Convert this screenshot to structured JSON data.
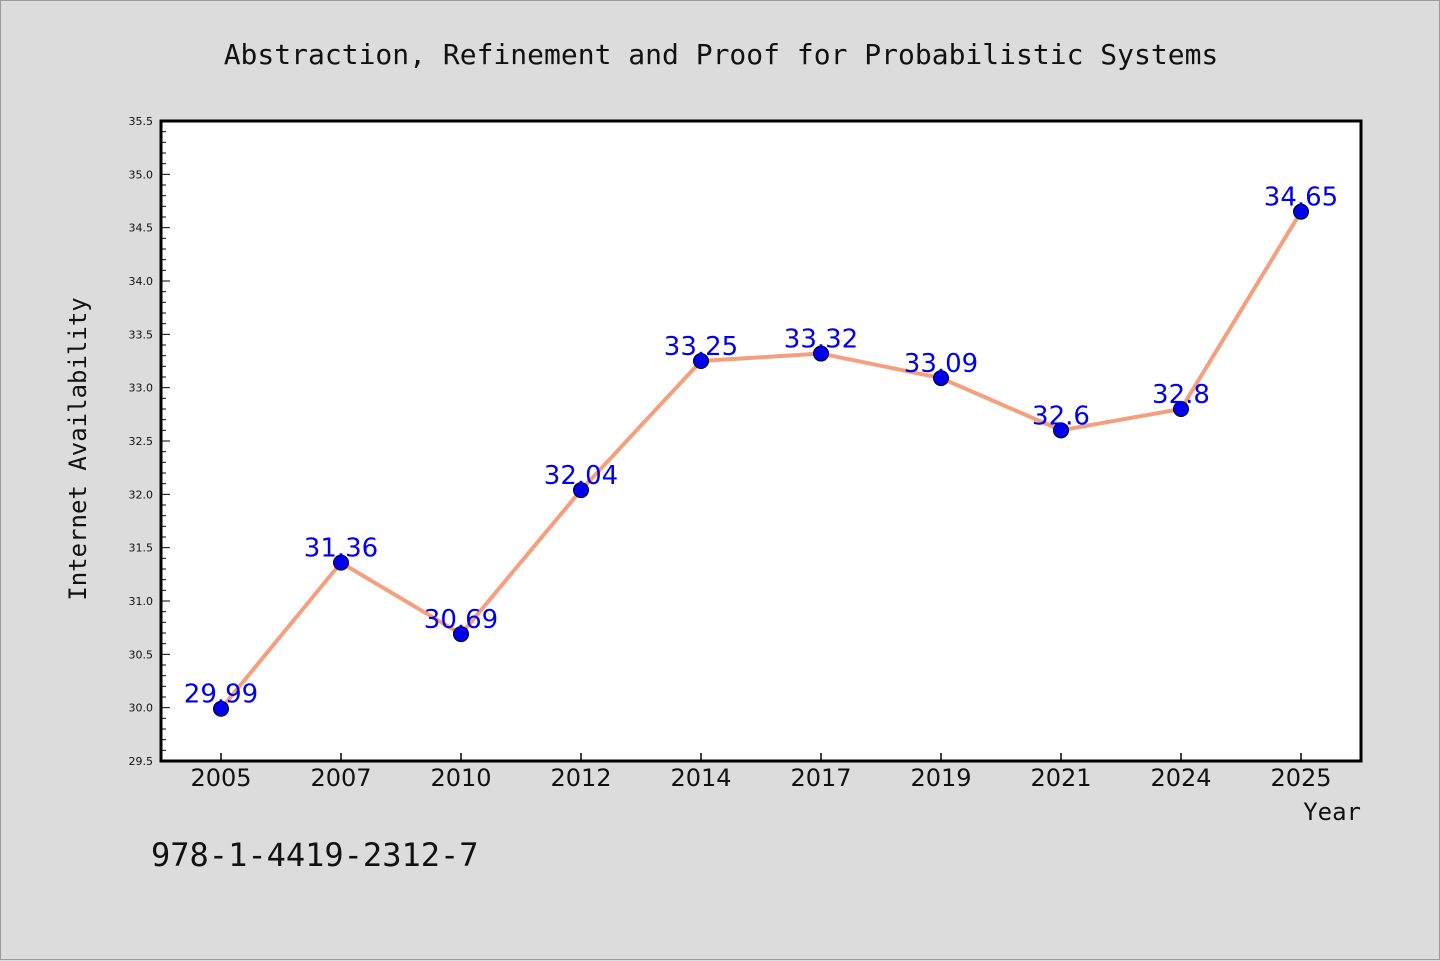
{
  "chart_data": {
    "type": "line",
    "title": "Abstraction, Refinement and Proof for Probabilistic Systems",
    "xlabel": "Year",
    "ylabel": "Internet Availability",
    "categories": [
      "2005",
      "2007",
      "2010",
      "2012",
      "2014",
      "2017",
      "2019",
      "2021",
      "2024",
      "2025"
    ],
    "series": [
      {
        "values": [
          29.99,
          31.36,
          30.69,
          32.04,
          33.25,
          33.32,
          33.09,
          32.6,
          32.8,
          34.65
        ],
        "data_labels": [
          "29.99",
          "31.36",
          "30.69",
          "32.04",
          "33.25",
          "33.32",
          "33.09",
          "32.6",
          "32.8",
          "34.65"
        ]
      }
    ],
    "ylim": [
      29.5,
      35.5
    ],
    "yticks": [
      "29.5",
      "30.0",
      "30.5",
      "31.0",
      "31.5",
      "32.0",
      "32.5",
      "33.0",
      "33.5",
      "34.0",
      "34.5",
      "35.0",
      "35.5"
    ],
    "grid": false,
    "legend": "none",
    "colors": {
      "line": "#f4a07e",
      "marker": "#0000ee",
      "data_label": "#0000ee",
      "plot_background": "#ffffff",
      "page_background": "#dcdcdc"
    }
  },
  "footer": {
    "isbn": "978-1-4419-2312-7"
  }
}
